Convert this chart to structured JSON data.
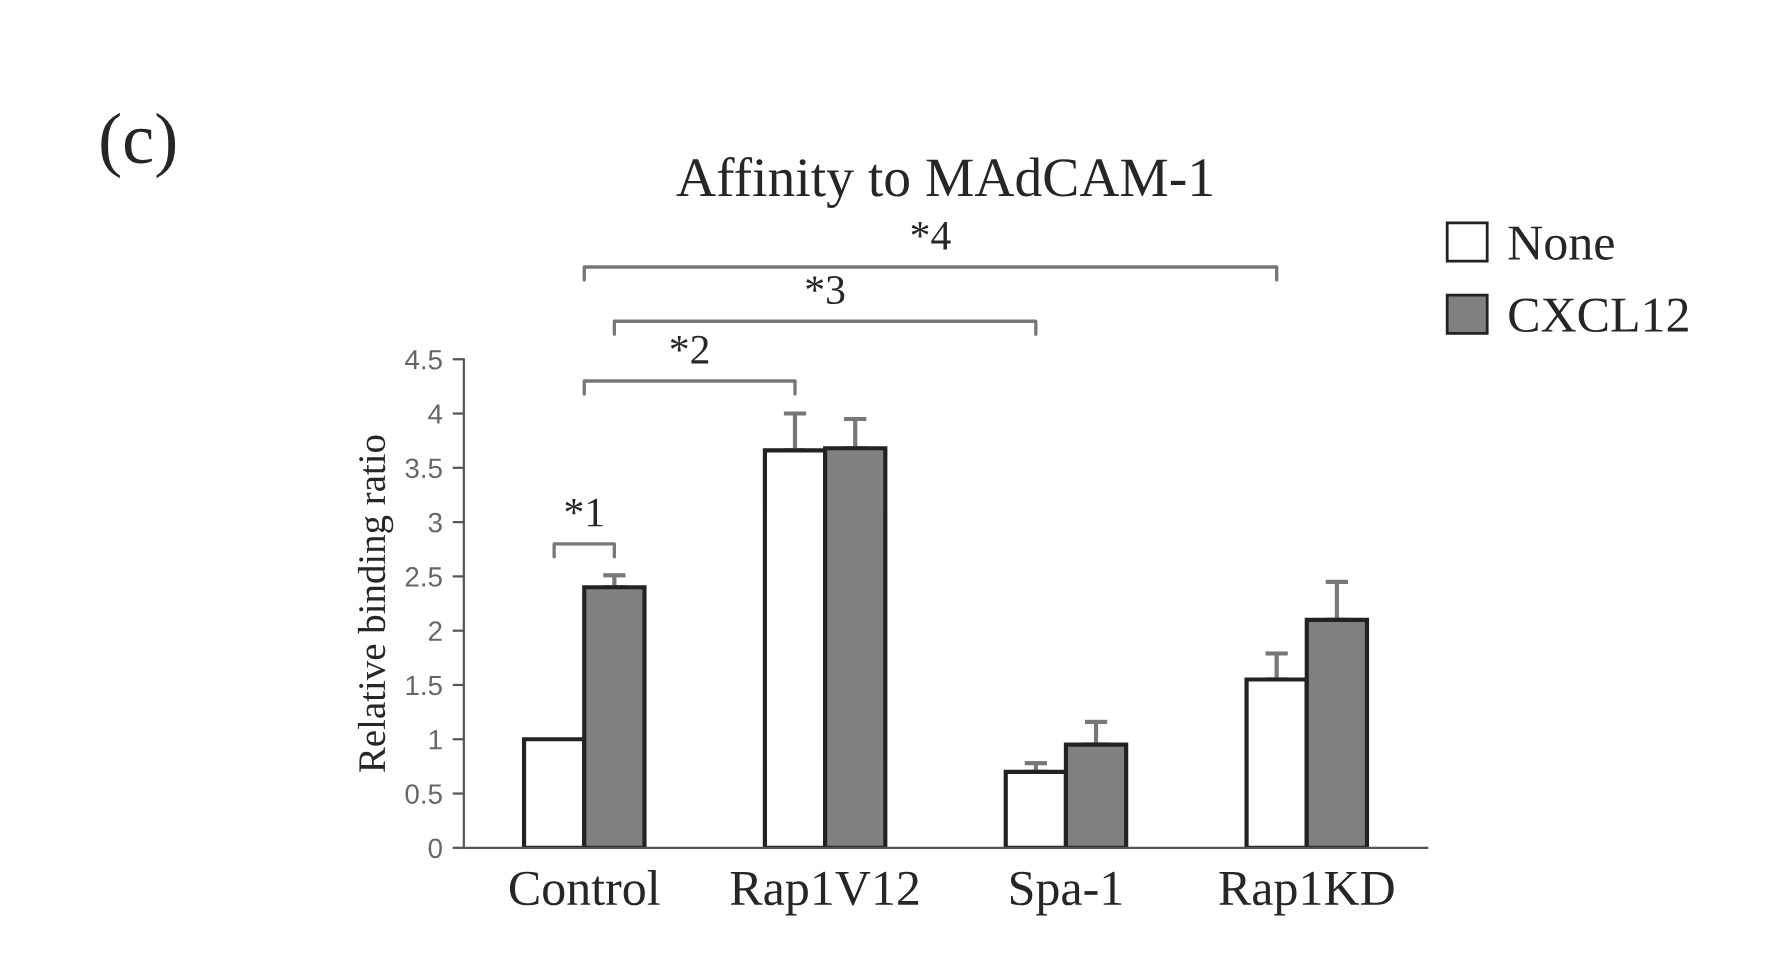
{
  "chart_data": {
    "type": "bar",
    "title": "Affinity to MAdCAM-1",
    "ylabel": "Relative binding ratio",
    "categories": [
      "Control",
      "Rap1V12",
      "Spa-1",
      "Rap1KD"
    ],
    "series": [
      {
        "name": "None",
        "color": "#ffffff",
        "values": [
          1.0,
          3.66,
          0.7,
          1.55
        ],
        "errors": [
          null,
          [
            3.66,
            4.0
          ],
          [
            0.7,
            0.78
          ],
          [
            1.55,
            1.79
          ]
        ]
      },
      {
        "name": "CXCL12",
        "color": "#808080",
        "values": [
          2.4,
          3.68,
          0.95,
          2.1
        ],
        "errors": [
          [
            2.4,
            2.51
          ],
          [
            3.68,
            3.95
          ],
          [
            0.95,
            1.16
          ],
          [
            2.1,
            2.45
          ]
        ]
      }
    ],
    "ylim": [
      0,
      4.5
    ],
    "yticks": [
      0,
      0.5,
      1,
      1.5,
      2,
      2.5,
      3,
      3.5,
      4,
      4.5
    ],
    "grid": false,
    "legend": "top right",
    "annotations": [
      "(c)",
      "*1",
      "*2",
      "*3",
      "*4"
    ]
  }
}
